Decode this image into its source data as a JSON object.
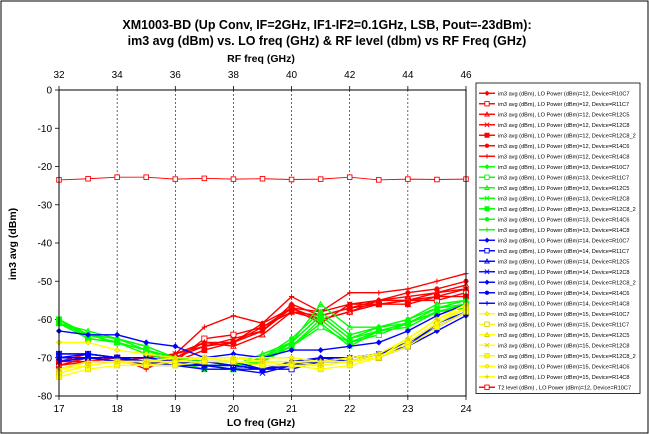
{
  "chart_data": {
    "type": "line",
    "title_line1": "XM1003-BD (Up Conv, IF=2GHz, IF1-IF2=0.1GHz, LSB, Pout=-23dBm):",
    "title_line2": "im3 avg (dBm) vs. LO freq (GHz) &  RF level (dbm) vs RF Freq (GHz)",
    "xlabel": "LO freq (GHz)",
    "ylabel": "im3 avg (dBm)",
    "x2label": "RF freq (GHz)",
    "xlim": [
      17,
      24
    ],
    "x2lim": [
      32,
      46
    ],
    "ylim": [
      -80,
      0
    ],
    "xticks": [
      17,
      18,
      19,
      20,
      21,
      22,
      23,
      24
    ],
    "x2ticks": [
      32,
      34,
      36,
      38,
      40,
      42,
      44,
      46
    ],
    "yticks": [
      0,
      -10,
      -20,
      -30,
      -40,
      -50,
      -60,
      -70,
      -80
    ],
    "grid": "vertical",
    "legend_position": "right",
    "x": [
      17,
      17.5,
      18,
      18.5,
      19,
      19.5,
      20,
      20.5,
      21,
      21.5,
      22,
      22.5,
      23,
      23.5,
      24
    ],
    "series": [
      {
        "name": "im3 avg (dBm), LO Power (dBm)=12, Device=R10C7",
        "color": "#ff0000",
        "marker": "diamond",
        "values": [
          -71,
          -70,
          -70,
          -71,
          -70,
          -66,
          -66,
          -63,
          -56,
          -59,
          -57,
          -55,
          -55,
          -54,
          -52
        ]
      },
      {
        "name": "im3 avg (dBm), LO Power (dBm)=12, Device=R11C7",
        "color": "#ff0000",
        "marker": "square-open",
        "values": [
          -72,
          -71,
          -70,
          -72,
          -71,
          -65,
          -64,
          -62,
          -57,
          -60,
          -58,
          -56,
          -55,
          -55,
          -53
        ]
      },
      {
        "name": "im3 avg (dBm), LO Power (dBm)=12, Device=R12C5",
        "color": "#ff0000",
        "marker": "triangle-open",
        "values": [
          -70,
          -70,
          -71,
          -70,
          -69,
          -66,
          -67,
          -64,
          -58,
          -60,
          -58,
          -55,
          -54,
          -53,
          -51
        ]
      },
      {
        "name": "im3 avg (dBm), LO Power (dBm)=12, Device=R12C8",
        "color": "#ff0000",
        "marker": "x",
        "values": [
          -72,
          -70,
          -71,
          -70,
          -69,
          -67,
          -65,
          -63,
          -57,
          -58,
          -56,
          -56,
          -55,
          -53,
          -52
        ]
      },
      {
        "name": "im3 avg (dBm), LO Power (dBm)=12, Device=R12C8_2",
        "color": "#ff0000",
        "marker": "square",
        "values": [
          -71,
          -71,
          -70,
          -70,
          -71,
          -68,
          -66,
          -62,
          -58,
          -59,
          -57,
          -56,
          -56,
          -54,
          -54
        ]
      },
      {
        "name": "im3 avg (dBm), LO Power (dBm)=12, Device=R14C6",
        "color": "#ff0000",
        "marker": "circle",
        "values": [
          -73,
          -71,
          -71,
          -72,
          -70,
          -67,
          -66,
          -61,
          -57,
          -61,
          -56,
          -55,
          -53,
          -52,
          -50
        ]
      },
      {
        "name": "im3 avg (dBm), LO Power (dBm)=12, Device=R14C8",
        "color": "#ff0000",
        "marker": "plus",
        "values": [
          -71,
          -69,
          -70,
          -73,
          -69,
          -62,
          -59,
          -61,
          -54,
          -58,
          -53,
          -53,
          -52,
          -50,
          -48
        ]
      },
      {
        "name": "im3 avg (dBm), LO Power (dBm)=13, Device=R10C7",
        "color": "#00ff00",
        "marker": "diamond",
        "values": [
          -60,
          -64,
          -65,
          -68,
          -70,
          -72,
          -72,
          -71,
          -66,
          -59,
          -65,
          -63,
          -61,
          -58,
          -57
        ]
      },
      {
        "name": "im3 avg (dBm), LO Power (dBm)=13, Device=R11C7",
        "color": "#00ff00",
        "marker": "square-open",
        "values": [
          -60,
          -65,
          -66,
          -68,
          -71,
          -72,
          -73,
          -70,
          -67,
          -62,
          -66,
          -64,
          -61,
          -58,
          -56
        ]
      },
      {
        "name": "im3 avg (dBm), LO Power (dBm)=13, Device=R12C5",
        "color": "#00ff00",
        "marker": "triangle-open",
        "values": [
          -61,
          -63,
          -65,
          -67,
          -70,
          -71,
          -72,
          -69,
          -66,
          -56,
          -62,
          -62,
          -60,
          -56,
          -55
        ]
      },
      {
        "name": "im3 avg (dBm), LO Power (dBm)=13, Device=R12C8",
        "color": "#00ff00",
        "marker": "x",
        "values": [
          -60,
          -64,
          -66,
          -68,
          -71,
          -72,
          -73,
          -71,
          -67,
          -61,
          -67,
          -63,
          -62,
          -58,
          -56
        ]
      },
      {
        "name": "im3 avg (dBm), LO Power (dBm)=13, Device=R12C8_2",
        "color": "#00ff00",
        "marker": "square",
        "values": [
          -61,
          -65,
          -66,
          -69,
          -71,
          -73,
          -73,
          -71,
          -67,
          -60,
          -66,
          -63,
          -61,
          -58,
          -57
        ]
      },
      {
        "name": "im3 avg (dBm), LO Power (dBm)=13, Device=R14C6",
        "color": "#00ff00",
        "marker": "circle",
        "values": [
          -60,
          -64,
          -65,
          -67,
          -70,
          -71,
          -72,
          -70,
          -65,
          -58,
          -64,
          -62,
          -60,
          -57,
          -55
        ]
      },
      {
        "name": "im3 avg (dBm), LO Power (dBm)=13, Device=R14C8",
        "color": "#00ff00",
        "marker": "plus",
        "values": [
          -61,
          -64,
          -66,
          -68,
          -70,
          -72,
          -72,
          -70,
          -66,
          -59,
          -65,
          -62,
          -61,
          -57,
          -56
        ]
      },
      {
        "name": "im3 avg (dBm), LO Power (dBm)=14, Device=R10C7",
        "color": "#0000ff",
        "marker": "diamond",
        "values": [
          -63,
          -64,
          -64,
          -66,
          -67,
          -70,
          -69,
          -70,
          -68,
          -68,
          -67,
          -66,
          -63,
          -59,
          -56
        ]
      },
      {
        "name": "im3 avg (dBm), LO Power (dBm)=14, Device=R11C7",
        "color": "#0000ff",
        "marker": "square-open",
        "values": [
          -69,
          -69,
          -70,
          -71,
          -71,
          -71,
          -72,
          -73,
          -73,
          -71,
          -71,
          -70,
          -67,
          -61,
          -58
        ]
      },
      {
        "name": "im3 avg (dBm), LO Power (dBm)=14, Device=R12C5",
        "color": "#0000ff",
        "marker": "triangle-open",
        "values": [
          -70,
          -70,
          -70,
          -71,
          -71,
          -72,
          -72,
          -73,
          -72,
          -70,
          -70,
          -69,
          -66,
          -62,
          -58
        ]
      },
      {
        "name": "im3 avg (dBm), LO Power (dBm)=14, Device=R12C8",
        "color": "#0000ff",
        "marker": "x",
        "values": [
          -71,
          -70,
          -70,
          -72,
          -72,
          -73,
          -73,
          -74,
          -72,
          -71,
          -70,
          -69,
          -66,
          -62,
          -58
        ]
      },
      {
        "name": "im3 avg (dBm), LO Power (dBm)=14, Device=R12C8_2",
        "color": "#0000ff",
        "marker": "diamond",
        "values": [
          -70,
          -70,
          -71,
          -71,
          -72,
          -72,
          -73,
          -73,
          -72,
          -71,
          -71,
          -69,
          -67,
          -63,
          -59
        ]
      },
      {
        "name": "im3 avg (dBm), LO Power (dBm)=14, Device=R14C6",
        "color": "#0000ff",
        "marker": "circle",
        "values": [
          -69,
          -69,
          -70,
          -70,
          -71,
          -71,
          -71,
          -73,
          -71,
          -70,
          -70,
          -69,
          -66,
          -61,
          -57
        ]
      },
      {
        "name": "im3 avg (dBm), LO Power (dBm)=14, Device=R14C8",
        "color": "#0000ff",
        "marker": "plus",
        "values": [
          -70,
          -69,
          -70,
          -70,
          -71,
          -72,
          -72,
          -73,
          -72,
          -70,
          -71,
          -69,
          -66,
          -61,
          -57
        ]
      },
      {
        "name": "im3 avg (dBm), LO Power (dBm)=15, Device=R10C7",
        "color": "#ffff00",
        "marker": "diamond",
        "values": [
          -66,
          -66,
          -68,
          -69,
          -70,
          -70,
          -70,
          -70,
          -70,
          -71,
          -70,
          -69,
          -65,
          -60,
          -56
        ]
      },
      {
        "name": "im3 avg (dBm), LO Power (dBm)=15, Device=R11C7",
        "color": "#ffff00",
        "marker": "square-open",
        "values": [
          -74,
          -72,
          -71,
          -71,
          -71,
          -71,
          -71,
          -71,
          -72,
          -72,
          -71,
          -70,
          -66,
          -61,
          -57
        ]
      },
      {
        "name": "im3 avg (dBm), LO Power (dBm)=15, Device=R12C5",
        "color": "#ffff00",
        "marker": "triangle-open",
        "values": [
          -73,
          -71,
          -71,
          -71,
          -70,
          -70,
          -70,
          -71,
          -71,
          -71,
          -71,
          -70,
          -65,
          -60,
          -57
        ]
      },
      {
        "name": "im3 avg (dBm), LO Power (dBm)=15, Device=R12C8",
        "color": "#ffff00",
        "marker": "x",
        "values": [
          -74,
          -72,
          -71,
          -72,
          -71,
          -70,
          -71,
          -72,
          -72,
          -72,
          -71,
          -70,
          -66,
          -61,
          -57
        ]
      },
      {
        "name": "im3 avg (dBm), LO Power (dBm)=15, Device=R12C8_2",
        "color": "#ffff00",
        "marker": "square",
        "values": [
          -75,
          -73,
          -72,
          -72,
          -72,
          -71,
          -71,
          -72,
          -72,
          -73,
          -72,
          -70,
          -67,
          -62,
          -58
        ]
      },
      {
        "name": "im3 avg (dBm), LO Power (dBm)=15, Device=R14C6",
        "color": "#ffff00",
        "marker": "circle",
        "values": [
          -74,
          -72,
          -71,
          -71,
          -71,
          -70,
          -70,
          -71,
          -72,
          -72,
          -71,
          -70,
          -66,
          -61,
          -57
        ]
      },
      {
        "name": "im3 avg (dBm), LO Power (dBm)=15, Device=R14C8",
        "color": "#ffff00",
        "marker": "plus",
        "values": [
          -73,
          -72,
          -71,
          -71,
          -70,
          -70,
          -70,
          -71,
          -71,
          -72,
          -71,
          -69,
          -65,
          -60,
          -56
        ]
      }
    ],
    "rf_series": {
      "name": "T2 level (dBm) , LO Power (dBm)=12, Device=R10C7",
      "color": "#ff0000",
      "marker": "square-open",
      "axis": "RF freq (GHz)",
      "x": [
        32,
        33,
        34,
        35,
        36,
        37,
        38,
        39,
        40,
        41,
        42,
        43,
        44,
        45,
        46
      ],
      "values": [
        -23.5,
        -23.2,
        -22.8,
        -22.8,
        -23.3,
        -23.1,
        -23.3,
        -23.2,
        -23.4,
        -23.3,
        -22.8,
        -23.5,
        -23.3,
        -23.4,
        -23.3
      ]
    }
  }
}
